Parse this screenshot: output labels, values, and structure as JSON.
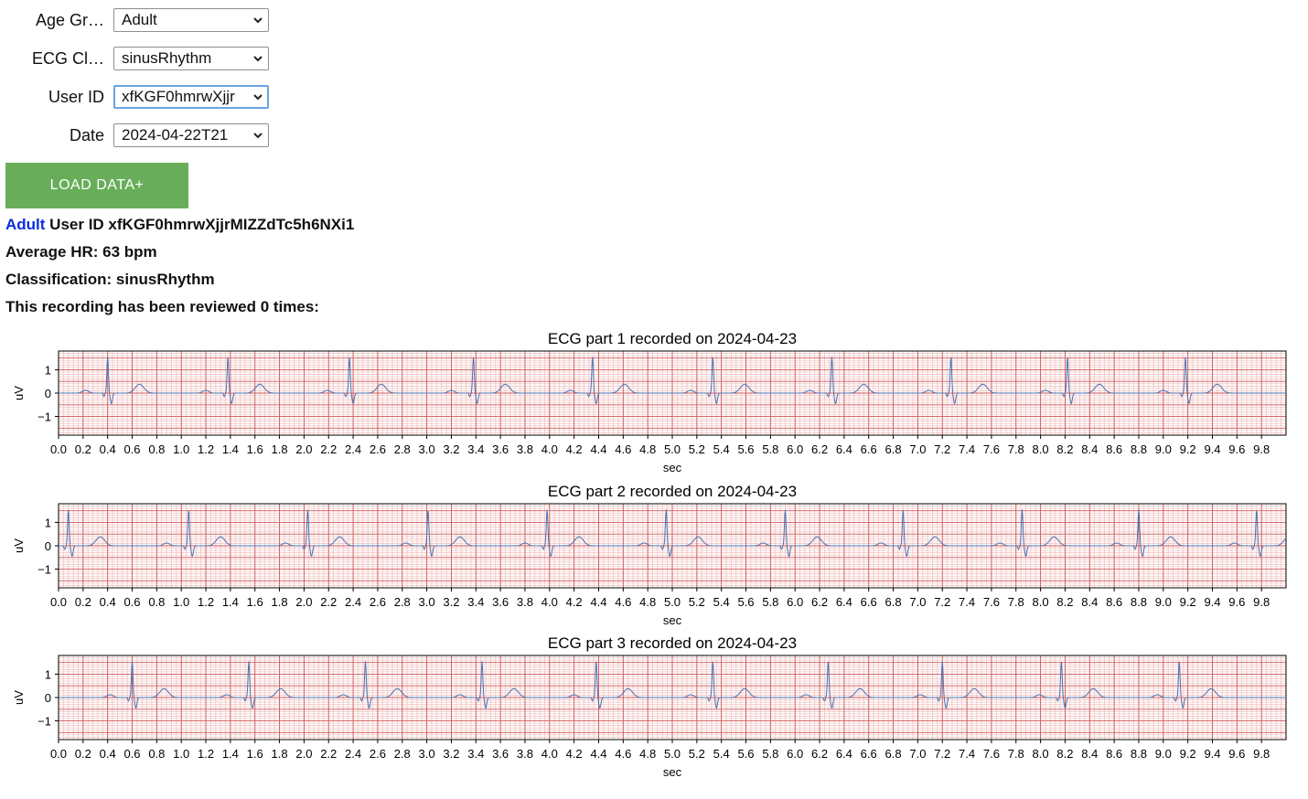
{
  "form": {
    "age_group": {
      "label": "Age Gr…",
      "value": "Adult"
    },
    "ecg_class": {
      "label": "ECG Cl…",
      "value": "sinusRhythm"
    },
    "user_id": {
      "label": "User ID",
      "value": "xfKGF0hmrwXjjr"
    },
    "date": {
      "label": "Date",
      "value": "2024-04-22T21"
    }
  },
  "load_button": {
    "label": "LOAD DATA+"
  },
  "summary": {
    "age_group": "Adult",
    "user_line": "User ID xfKGF0hmrwXjjrMIZZdTc5h6NXi1",
    "average_hr": "Average HR: 63 bpm",
    "classification": "Classification: sinusRhythm",
    "reviews": "This recording has been reviewed 0 times:"
  },
  "colors": {
    "trace": "#4a72b0",
    "grid_major": "#cd5555",
    "grid_minor": "#f2c4c4",
    "button": "#68ae5a",
    "link": "#0a2de0"
  },
  "chart_data": [
    {
      "type": "line",
      "title": "ECG part 1 recorded on 2024-04-23",
      "xlabel": "sec",
      "ylabel": "uV",
      "xlim": [
        0,
        10
      ],
      "ylim": [
        -1.8,
        1.8
      ],
      "yticks": [
        "1",
        "0",
        "−1"
      ],
      "ytick_values": [
        1,
        0,
        -1
      ],
      "xticks": [
        "0.0",
        "0.2",
        "0.4",
        "0.6",
        "0.8",
        "1.0",
        "1.2",
        "1.4",
        "1.6",
        "1.8",
        "2.0",
        "2.2",
        "2.4",
        "2.6",
        "2.8",
        "3.0",
        "3.2",
        "3.4",
        "3.6",
        "3.8",
        "4.0",
        "4.2",
        "4.4",
        "4.6",
        "4.8",
        "5.0",
        "5.2",
        "5.4",
        "5.6",
        "5.8",
        "6.0",
        "6.2",
        "6.4",
        "6.6",
        "6.8",
        "7.0",
        "7.2",
        "7.4",
        "7.6",
        "7.8",
        "8.0",
        "8.2",
        "8.4",
        "8.6",
        "8.8",
        "9.0",
        "9.2",
        "9.4",
        "9.6",
        "9.8"
      ],
      "grid": true,
      "r_peaks_sec": [
        0.4,
        1.38,
        2.37,
        3.38,
        4.35,
        5.33,
        6.3,
        7.27,
        8.22,
        9.18
      ]
    },
    {
      "type": "line",
      "title": "ECG part 2 recorded on 2024-04-23",
      "xlabel": "sec",
      "ylabel": "uV",
      "xlim": [
        0,
        10
      ],
      "ylim": [
        -1.8,
        1.8
      ],
      "yticks": [
        "1",
        "0",
        "−1"
      ],
      "ytick_values": [
        1,
        0,
        -1
      ],
      "xticks": [
        "0.0",
        "0.2",
        "0.4",
        "0.6",
        "0.8",
        "1.0",
        "1.2",
        "1.4",
        "1.6",
        "1.8",
        "2.0",
        "2.2",
        "2.4",
        "2.6",
        "2.8",
        "3.0",
        "3.2",
        "3.4",
        "3.6",
        "3.8",
        "4.0",
        "4.2",
        "4.4",
        "4.6",
        "4.8",
        "5.0",
        "5.2",
        "5.4",
        "5.6",
        "5.8",
        "6.0",
        "6.2",
        "6.4",
        "6.6",
        "6.8",
        "7.0",
        "7.2",
        "7.4",
        "7.6",
        "7.8",
        "8.0",
        "8.2",
        "8.4",
        "8.6",
        "8.8",
        "9.0",
        "9.2",
        "9.4",
        "9.6",
        "9.8"
      ],
      "grid": true,
      "r_peaks_sec": [
        0.08,
        1.06,
        2.03,
        3.01,
        3.98,
        4.95,
        5.92,
        6.88,
        7.85,
        8.8,
        9.76
      ]
    },
    {
      "type": "line",
      "title": "ECG part 3 recorded on 2024-04-23",
      "xlabel": "sec",
      "ylabel": "uV",
      "xlim": [
        0,
        10
      ],
      "ylim": [
        -1.8,
        1.8
      ],
      "yticks": [
        "1",
        "0",
        "−1"
      ],
      "ytick_values": [
        1,
        0,
        -1
      ],
      "xticks": [
        "0.0",
        "0.2",
        "0.4",
        "0.6",
        "0.8",
        "1.0",
        "1.2",
        "1.4",
        "1.6",
        "1.8",
        "2.0",
        "2.2",
        "2.4",
        "2.6",
        "2.8",
        "3.0",
        "3.2",
        "3.4",
        "3.6",
        "3.8",
        "4.0",
        "4.2",
        "4.4",
        "4.6",
        "4.8",
        "5.0",
        "5.2",
        "5.4",
        "5.6",
        "5.8",
        "6.0",
        "6.2",
        "6.4",
        "6.6",
        "6.8",
        "7.0",
        "7.2",
        "7.4",
        "7.6",
        "7.8",
        "8.0",
        "8.2",
        "8.4",
        "8.6",
        "8.8",
        "9.0",
        "9.2",
        "9.4",
        "9.6",
        "9.8"
      ],
      "grid": true,
      "r_peaks_sec": [
        0.6,
        1.55,
        2.5,
        3.45,
        4.38,
        5.33,
        6.27,
        7.2,
        8.17,
        9.13
      ]
    }
  ]
}
